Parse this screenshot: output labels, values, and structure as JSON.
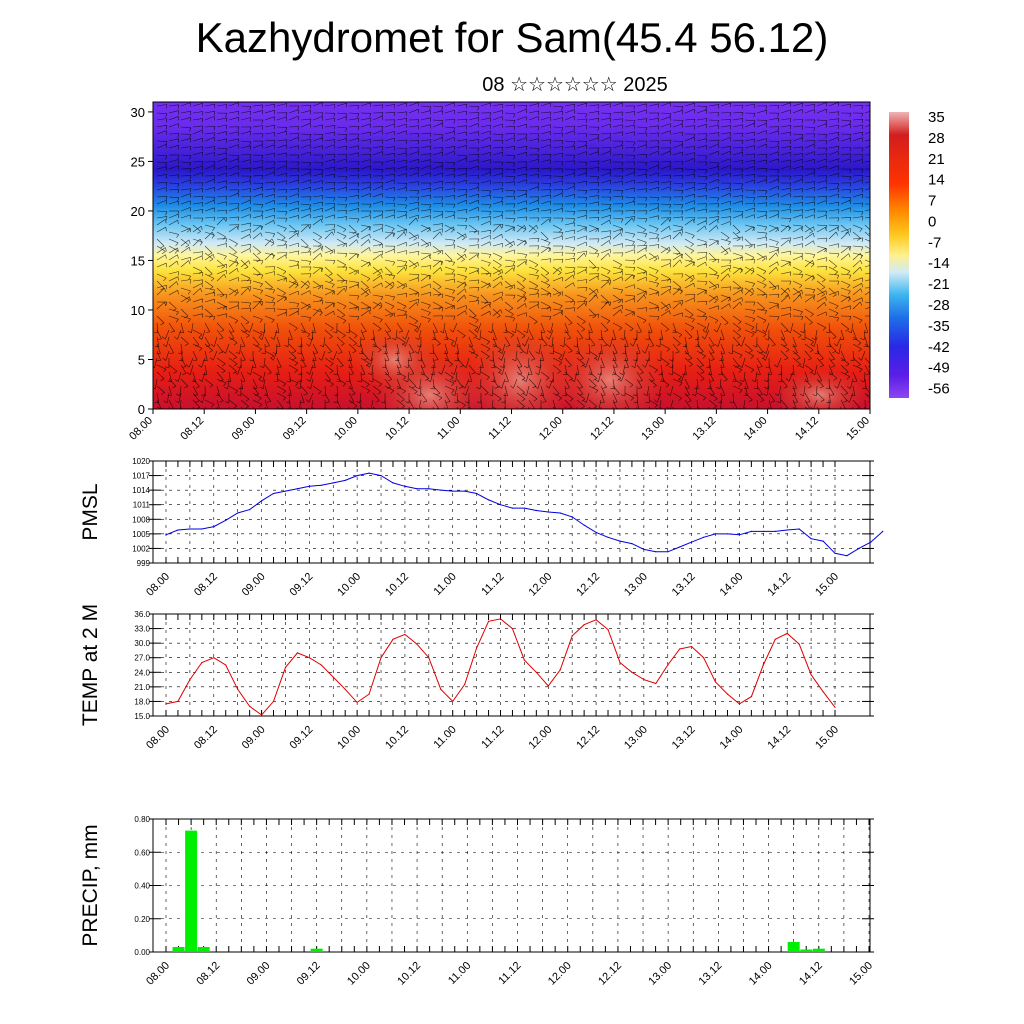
{
  "title": "Kazhydromet for Sam(45.4 56.12)",
  "subtitle": "08 ☆☆☆☆☆☆ 2025",
  "colors": {
    "pmsl_line": "#0000dd",
    "temp_line": "#dd0000",
    "precip_bar": "#00ee00",
    "frame": "#000000"
  },
  "chart_data": [
    {
      "type": "heatmap",
      "x_ticks": [
        "08.00",
        "08.12",
        "09.00",
        "09.12",
        "10.00",
        "10.12",
        "11.00",
        "11.12",
        "12.00",
        "12.12",
        "13.00",
        "13.12",
        "14.00",
        "14.12",
        "15.00"
      ],
      "y_ticks": [
        0,
        5,
        10,
        15,
        20,
        25,
        30
      ],
      "ylim": [
        0,
        31
      ],
      "colorbar_labels": [
        "35",
        "28",
        "21",
        "14",
        "7",
        "0",
        "-7",
        "-14",
        "-21",
        "-28",
        "-35",
        "-42",
        "-49",
        "-56"
      ],
      "overlay": "wind barbs"
    },
    {
      "type": "line",
      "ylabel": "PMSL",
      "ylim": [
        999,
        1020
      ],
      "y_ticks": [
        999,
        1002,
        1005,
        1008,
        1011,
        1014,
        1017,
        1020
      ],
      "x_ticks": [
        "08.00",
        "08.12",
        "09.00",
        "09.12",
        "10.00",
        "10.12",
        "11.00",
        "11.12",
        "12.00",
        "12.12",
        "13.00",
        "13.12",
        "14.00",
        "14.12",
        "15.00"
      ],
      "x_step_hours": 3,
      "values": [
        1004.8,
        1005.8,
        1006.0,
        1006.0,
        1006.5,
        1007.8,
        1009.3,
        1010.0,
        1011.8,
        1013.3,
        1013.8,
        1014.3,
        1014.8,
        1015.0,
        1015.5,
        1016.0,
        1017.0,
        1017.5,
        1017.0,
        1015.5,
        1014.8,
        1014.3,
        1014.3,
        1014.0,
        1013.8,
        1013.8,
        1013.3,
        1012.0,
        1011.0,
        1010.3,
        1010.3,
        1009.8,
        1009.5,
        1009.3,
        1008.5,
        1006.8,
        1005.3,
        1004.3,
        1003.5,
        1003.0,
        1001.8,
        1001.3,
        1001.3,
        1002.3,
        1003.3,
        1004.3,
        1005.0,
        1005.0,
        1004.8,
        1005.5,
        1005.5,
        1005.5,
        1005.8,
        1006.0,
        1004.0,
        1003.5,
        1001.0,
        1000.5,
        1002.0,
        1003.3,
        1005.5
      ]
    },
    {
      "type": "line",
      "ylabel": "TEMP at 2 M",
      "ylim": [
        15.0,
        36.0
      ],
      "y_ticks": [
        "15.0",
        "18.0",
        "21.0",
        "24.0",
        "27.0",
        "30.0",
        "33.0",
        "36.0"
      ],
      "x_ticks": [
        "08.00",
        "08.12",
        "09.00",
        "09.12",
        "10.00",
        "10.12",
        "11.00",
        "11.12",
        "12.00",
        "12.12",
        "13.00",
        "13.12",
        "14.00",
        "14.12",
        "15.00"
      ],
      "x_step_hours": 3,
      "values": [
        17.5,
        18.0,
        22.5,
        26.0,
        27.0,
        25.5,
        20.5,
        17.0,
        15.2,
        18.0,
        25.0,
        28.0,
        27.0,
        25.5,
        23.0,
        20.5,
        17.8,
        19.5,
        27.0,
        30.8,
        31.8,
        29.8,
        27.0,
        20.5,
        18.0,
        21.5,
        29.0,
        34.5,
        35.0,
        33.0,
        26.5,
        24.0,
        21.2,
        24.5,
        31.5,
        33.8,
        34.8,
        32.8,
        26.0,
        24.0,
        22.5,
        21.7,
        25.5,
        28.8,
        29.3,
        27.0,
        22.0,
        19.5,
        17.5,
        19.0,
        25.5,
        30.8,
        32.0,
        29.8,
        23.5,
        20.0,
        16.8
      ]
    },
    {
      "type": "bar",
      "ylabel": "PRECIP, mm",
      "ylim": [
        0,
        0.8
      ],
      "y_ticks": [
        "0.00",
        "0.20",
        "0.40",
        "0.60",
        "0.80"
      ],
      "x_ticks": [
        "08.00",
        "08.12",
        "09.00",
        "09.12",
        "10.00",
        "10.12",
        "11.00",
        "11.12",
        "12.00",
        "12.12",
        "13.00",
        "13.12",
        "14.00",
        "14.12",
        "15.00"
      ],
      "bars": [
        {
          "hour": 3,
          "value": 0.03
        },
        {
          "hour": 6,
          "value": 0.73
        },
        {
          "hour": 9,
          "value": 0.03
        },
        {
          "hour": 36,
          "value": 0.02
        },
        {
          "hour": 150,
          "value": 0.06
        },
        {
          "hour": 153,
          "value": 0.015
        },
        {
          "hour": 156,
          "value": 0.02
        }
      ]
    }
  ]
}
